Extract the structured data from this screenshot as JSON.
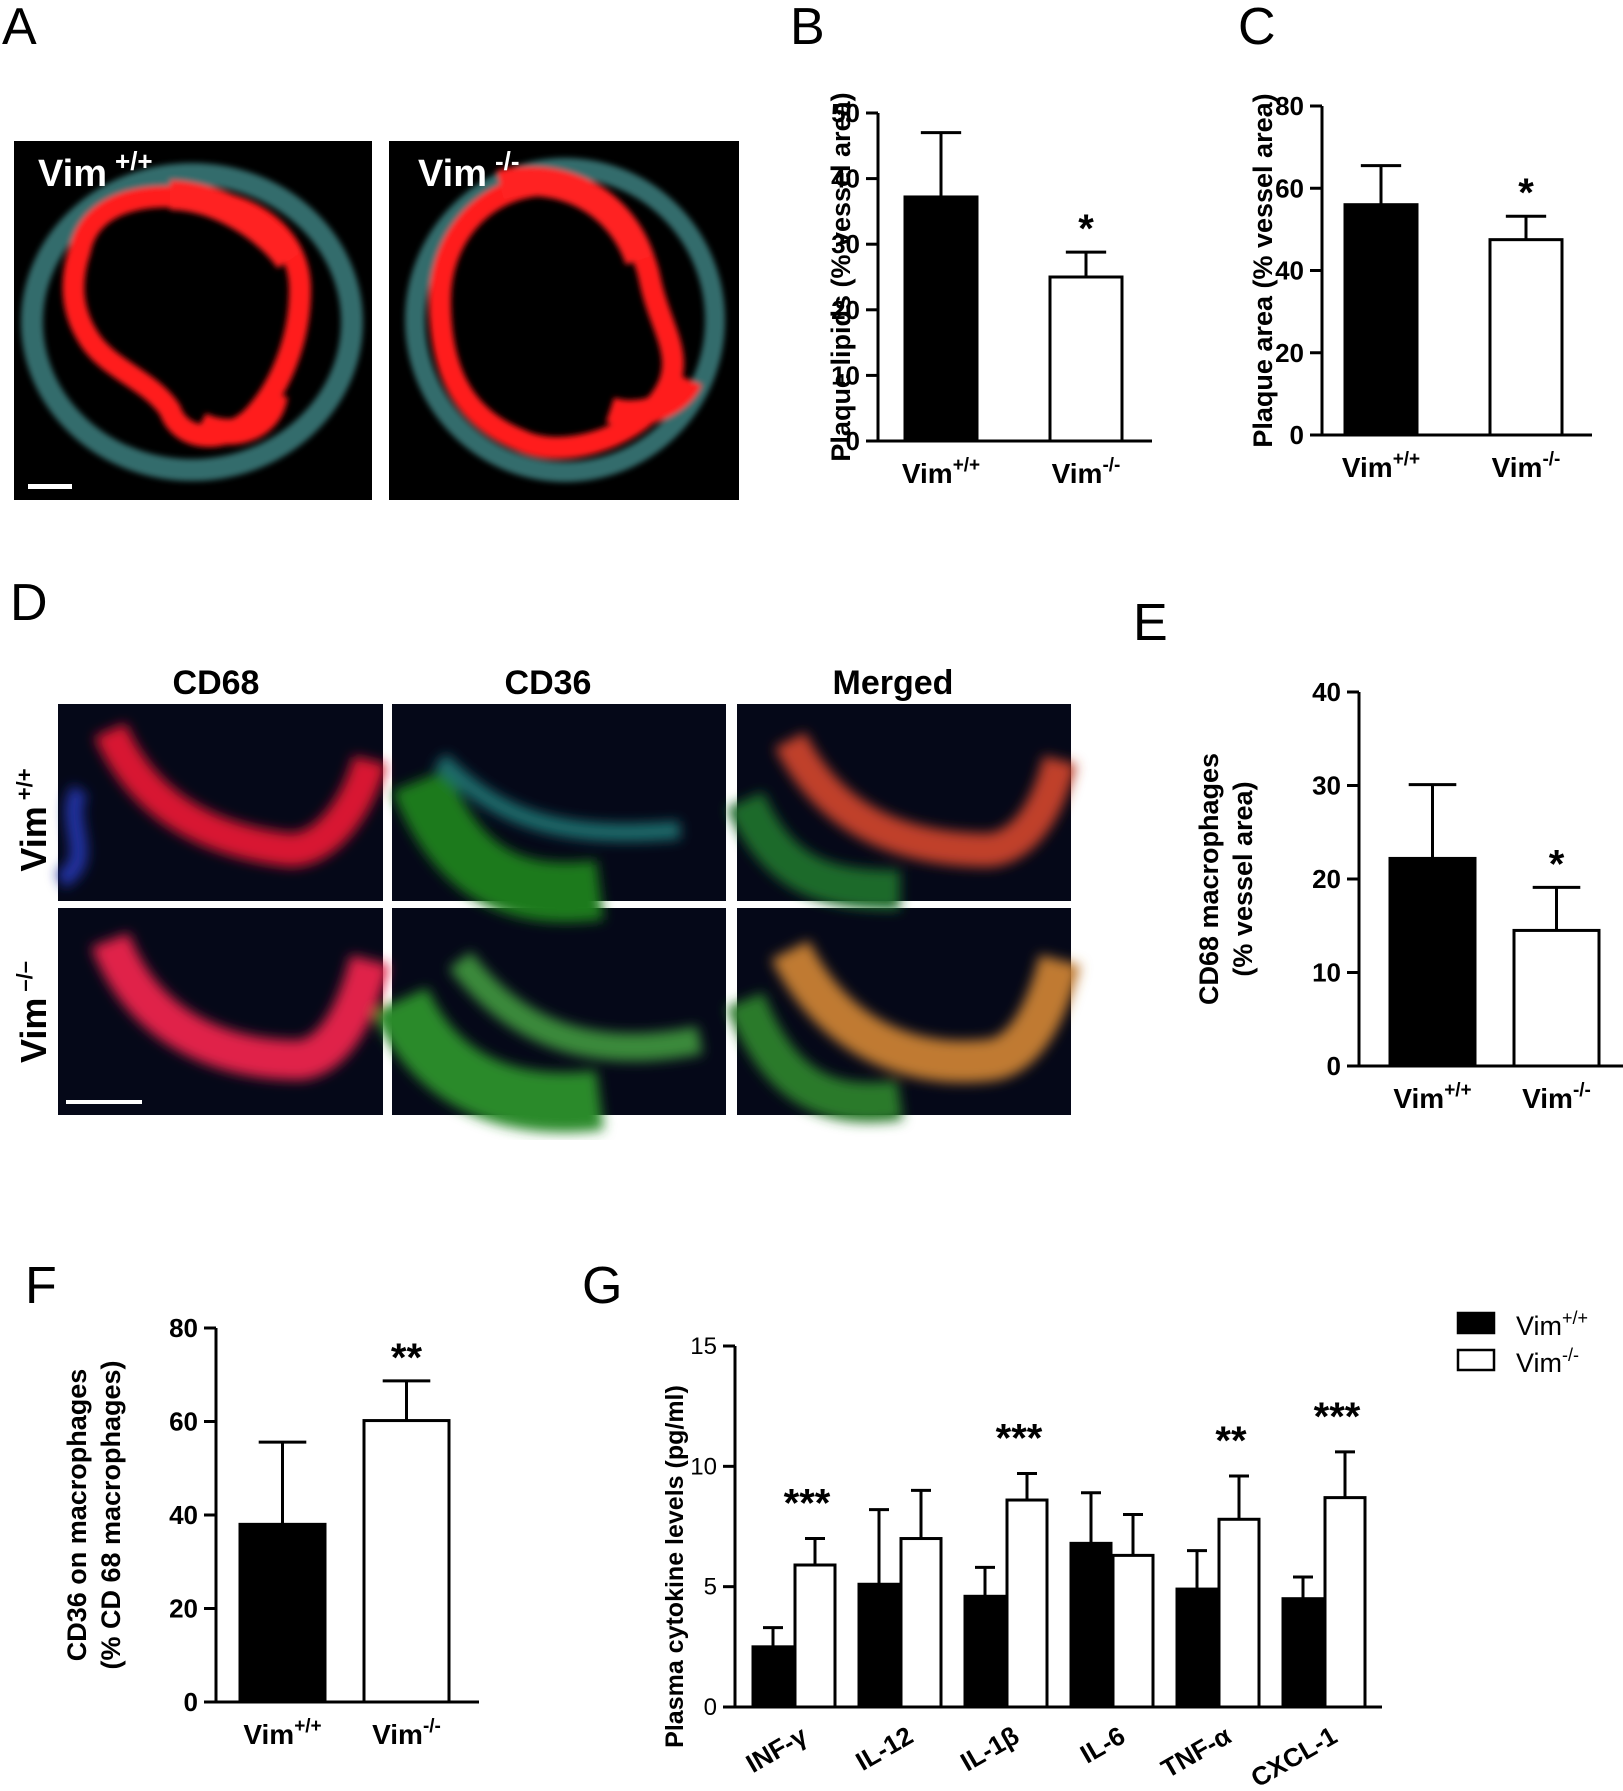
{
  "panels": {
    "A": "A",
    "B": "B",
    "C": "C",
    "D": "D",
    "E": "E",
    "F": "F",
    "G": "G"
  },
  "micrographs_A": {
    "left_label_main": "Vim",
    "left_label_sup": "+/+",
    "right_label_main": "Vim",
    "right_label_sup": "-/-"
  },
  "micrographs_D": {
    "columns": [
      "CD68",
      "CD36",
      "Merged"
    ],
    "row1_main": "Vim",
    "row1_sup": "+/+",
    "row2_main": "Vim",
    "row2_sup": "–/–"
  },
  "colors": {
    "wt_bar": "#000000",
    "ko_bar": "#ffffff",
    "lipid_stain": "#ff1a1a",
    "vessel_stain": "#5fb5b5",
    "cd36_stain": "#2fa02f",
    "nucleus_stain": "#1a2a9a"
  },
  "chart_data": [
    {
      "panel": "B",
      "type": "bar",
      "categories": [
        "Vim+/+",
        "Vim-/-"
      ],
      "values": [
        37.2,
        25.0
      ],
      "errors": [
        9.8,
        3.8
      ],
      "significance": [
        "",
        "*"
      ],
      "ylabel": "Plaque lipids (% vessel area)",
      "ylim": [
        0,
        50
      ],
      "yticks": [
        0,
        10,
        20,
        30,
        40,
        50
      ]
    },
    {
      "panel": "C",
      "type": "bar",
      "categories": [
        "Vim+/+",
        "Vim-/-"
      ],
      "values": [
        56.0,
        47.5
      ],
      "errors": [
        9.5,
        5.7
      ],
      "significance": [
        "",
        "*"
      ],
      "ylabel": "Plaque area (% vessel area)",
      "ylim": [
        0,
        80
      ],
      "yticks": [
        0,
        20,
        40,
        60,
        80
      ]
    },
    {
      "panel": "E",
      "type": "bar",
      "categories": [
        "Vim+/+",
        "Vim-/-"
      ],
      "values": [
        22.2,
        14.5
      ],
      "errors": [
        7.9,
        4.6
      ],
      "significance": [
        "",
        "*"
      ],
      "ylabel_line1": "CD68 macrophages",
      "ylabel_line2": "(% vessel area)",
      "ylim": [
        0,
        40
      ],
      "yticks": [
        0,
        10,
        20,
        30,
        40
      ]
    },
    {
      "panel": "F",
      "type": "bar",
      "categories": [
        "Vim+/+",
        "Vim-/-"
      ],
      "values": [
        38.0,
        60.2
      ],
      "errors": [
        17.6,
        8.5
      ],
      "significance": [
        "",
        "**"
      ],
      "ylabel_line1": "CD36 on macrophages",
      "ylabel_line2": "(% CD 68 macrophages)",
      "ylim": [
        0,
        80
      ],
      "yticks": [
        0,
        20,
        40,
        60,
        80
      ]
    },
    {
      "panel": "G",
      "type": "bar",
      "categories": [
        "INF-γ",
        "IL-12",
        "IL-1β",
        "IL-6",
        "TNF-α",
        "CXCL-1"
      ],
      "series": [
        {
          "name": "Vim+/+",
          "values": [
            2.5,
            5.1,
            4.6,
            6.8,
            4.9,
            4.5
          ],
          "errors": [
            0.8,
            3.1,
            1.2,
            2.1,
            1.6,
            0.9
          ]
        },
        {
          "name": "Vim-/-",
          "values": [
            5.9,
            7.0,
            8.6,
            6.3,
            7.8,
            8.7
          ],
          "errors": [
            1.1,
            2.0,
            1.1,
            1.7,
            1.8,
            1.9
          ]
        }
      ],
      "significance": [
        "***",
        "",
        "***",
        "",
        "**",
        "***"
      ],
      "ylabel": "Plasma cytokine levels (pg/ml)",
      "ylim": [
        0,
        15
      ],
      "yticks": [
        0,
        5,
        10,
        15
      ],
      "legend_position": "top-right"
    }
  ]
}
